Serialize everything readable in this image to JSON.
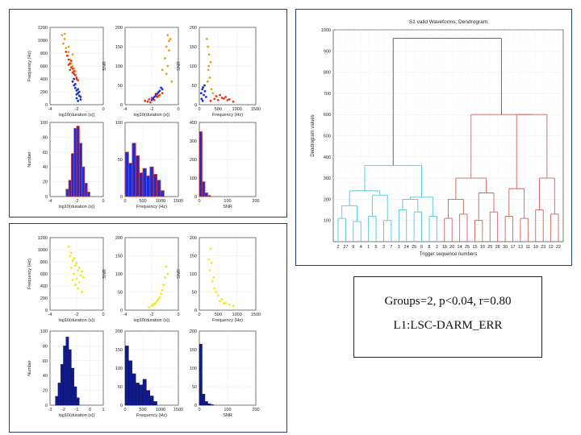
{
  "colors": {
    "red": "#e03a1e",
    "blue": "#1f2bd6",
    "orange": "#e8a020",
    "yellow": "#f2e81a",
    "navy": "#101a8a",
    "cyan": "#4fc3dc",
    "dendro_red": "#d0605a",
    "dendro_gray": "#555555",
    "grid": "#d8d8d8",
    "frame": "#1f3f7a"
  },
  "info": {
    "line1": "Groups=2, p<0.04, r=0.80",
    "line2": "L1:LSC-DARM_ERR"
  },
  "chart_data": [
    {
      "id": "top-freq-vs-duration",
      "type": "scatter",
      "xlabel": "log10(duration (s))",
      "ylabel": "Frequency (Hz)",
      "xlim": [
        -4,
        0
      ],
      "ylim": [
        0,
        1200
      ],
      "xticks": [
        "-4",
        "-2",
        "0"
      ],
      "yticks": [
        "0",
        "200",
        "400",
        "600",
        "800",
        "1000",
        "1200"
      ],
      "grid": true,
      "series": [
        {
          "color": "orange",
          "x": [
            -3.1,
            -3.0,
            -2.9,
            -2.8,
            -2.7,
            -2.6,
            -2.5,
            -2.4,
            -2.3,
            -2.2,
            -2.1,
            -2.9,
            -2.6,
            -2.3
          ],
          "y": [
            1080,
            950,
            1020,
            880,
            760,
            900,
            700,
            640,
            780,
            560,
            520,
            1100,
            820,
            600
          ]
        },
        {
          "color": "red",
          "x": [
            -2.8,
            -2.7,
            -2.6,
            -2.5,
            -2.4,
            -2.3,
            -2.2,
            -2.1,
            -2.0,
            -1.9,
            -2.6,
            -2.4,
            -2.2,
            -2.0,
            -2.5,
            -2.3
          ],
          "y": [
            820,
            760,
            700,
            640,
            680,
            560,
            520,
            460,
            400,
            380,
            620,
            580,
            480,
            420,
            540,
            500
          ]
        },
        {
          "color": "blue",
          "x": [
            -2.3,
            -2.2,
            -2.1,
            -2.0,
            -1.9,
            -1.8,
            -1.7,
            -2.1,
            -1.9,
            -2.0,
            -1.8,
            -2.2,
            -1.9,
            -1.7,
            -2.0
          ],
          "y": [
            360,
            300,
            260,
            220,
            180,
            140,
            120,
            320,
            240,
            100,
            200,
            400,
            60,
            80,
            160
          ]
        }
      ]
    },
    {
      "id": "top-snr-vs-duration",
      "type": "scatter",
      "xlabel": "log10(duration (s))",
      "ylabel": "SNR",
      "xlim": [
        -4,
        0
      ],
      "ylim": [
        0,
        200
      ],
      "xticks": [
        "-4",
        "-2",
        "0"
      ],
      "yticks": [
        "0",
        "50",
        "100",
        "150",
        "200"
      ],
      "grid": true,
      "series": [
        {
          "color": "orange",
          "x": [
            -0.8,
            -0.7,
            -0.9,
            -0.6,
            -1.0,
            -0.7,
            -0.8,
            -1.2,
            -0.5,
            -0.9
          ],
          "y": [
            180,
            165,
            150,
            170,
            120,
            140,
            100,
            90,
            60,
            80
          ]
        },
        {
          "color": "red",
          "x": [
            -2.5,
            -2.2,
            -2.0,
            -1.8,
            -1.6,
            -1.4,
            -1.2,
            -2.3,
            -1.9,
            -1.5,
            -2.1,
            -1.7
          ],
          "y": [
            10,
            14,
            18,
            12,
            20,
            25,
            30,
            8,
            16,
            22,
            6,
            28
          ]
        },
        {
          "color": "blue",
          "x": [
            -2.0,
            -1.8,
            -1.6,
            -1.4,
            -1.2,
            -1.7,
            -1.5,
            -1.3,
            -1.9
          ],
          "y": [
            12,
            20,
            28,
            36,
            40,
            24,
            32,
            44,
            16
          ]
        }
      ]
    },
    {
      "id": "top-snr-vs-frequency",
      "type": "scatter",
      "xlabel": "Frequency (Hz)",
      "ylabel": "SNR",
      "xlim": [
        0,
        1500
      ],
      "ylim": [
        0,
        200
      ],
      "xticks": [
        "0",
        "500",
        "1000",
        "1500"
      ],
      "yticks": [
        "0",
        "50",
        "100",
        "150",
        "200"
      ],
      "grid": true,
      "series": [
        {
          "color": "orange",
          "x": [
            200,
            230,
            260,
            300,
            240,
            280,
            220,
            320,
            360,
            250
          ],
          "y": [
            170,
            150,
            130,
            110,
            90,
            70,
            60,
            40,
            30,
            100
          ]
        },
        {
          "color": "red",
          "x": [
            300,
            400,
            500,
            600,
            700,
            800,
            900,
            450,
            650,
            550,
            750
          ],
          "y": [
            10,
            15,
            12,
            18,
            20,
            14,
            8,
            22,
            16,
            25,
            12
          ]
        },
        {
          "color": "blue",
          "x": [
            50,
            80,
            120,
            150,
            100,
            180,
            60,
            140,
            90
          ],
          "y": [
            30,
            40,
            25,
            35,
            45,
            20,
            15,
            50,
            10
          ]
        }
      ]
    },
    {
      "id": "top-duration-hist",
      "type": "bar",
      "xlabel": "log10(duration (s))",
      "ylabel": "Number",
      "xlim": [
        -4,
        0
      ],
      "ylim": [
        0,
        100
      ],
      "xticks": [
        "-4",
        "-2",
        "0"
      ],
      "yticks": [
        "0",
        "20",
        "40",
        "60",
        "80",
        "100"
      ],
      "grid": true,
      "bin_edges": [
        -2.8,
        -2.6,
        -2.4,
        -2.2,
        -2.0,
        -1.8,
        -1.6,
        -1.4,
        -1.2,
        -1.0
      ],
      "values": [
        10,
        22,
        58,
        92,
        95,
        72,
        40,
        18,
        6
      ]
    },
    {
      "id": "top-frequency-hist",
      "type": "bar",
      "xlabel": "Frequency (Hz)",
      "ylabel": "",
      "xlim": [
        0,
        1500
      ],
      "ylim": [
        0,
        100
      ],
      "xticks": [
        "0",
        "500",
        "1000",
        "1500"
      ],
      "yticks": [
        "0",
        "50",
        "100"
      ],
      "grid": true,
      "bin_edges": [
        0,
        100,
        200,
        300,
        400,
        500,
        600,
        700,
        800,
        900,
        1000,
        1100
      ],
      "values": [
        60,
        45,
        72,
        55,
        32,
        38,
        28,
        40,
        30,
        22,
        8
      ]
    },
    {
      "id": "top-snr-hist",
      "type": "bar",
      "xlabel": "SNR",
      "ylabel": "",
      "xlim": [
        0,
        200
      ],
      "ylim": [
        0,
        400
      ],
      "xticks": [
        "0",
        "100",
        "200"
      ],
      "yticks": [
        "0",
        "100",
        "200",
        "300",
        "400"
      ],
      "grid": true,
      "bin_edges": [
        0,
        10,
        20,
        30,
        40
      ],
      "values": [
        350,
        80,
        20,
        6
      ]
    },
    {
      "id": "bottom-freq-vs-duration",
      "type": "scatter",
      "xlabel": "log10(duration (s))",
      "ylabel": "Frequency (Hz)",
      "xlim": [
        -4,
        0
      ],
      "ylim": [
        0,
        1200
      ],
      "xticks": [
        "-4",
        "-2",
        "0"
      ],
      "yticks": [
        "0",
        "200",
        "400",
        "600",
        "800",
        "1000",
        "1200"
      ],
      "grid": true,
      "series": [
        {
          "color": "yellow",
          "x": [
            -2.6,
            -2.4,
            -2.2,
            -2.0,
            -1.8,
            -1.6,
            -2.5,
            -2.3,
            -2.1,
            -1.9,
            -1.7,
            -2.2,
            -2.0,
            -1.8,
            -2.4,
            -1.5,
            -2.1,
            -1.9,
            -2.3,
            -1.6
          ],
          "y": [
            1050,
            950,
            860,
            780,
            700,
            640,
            900,
            820,
            740,
            660,
            580,
            600,
            520,
            460,
            700,
            540,
            420,
            360,
            500,
            300
          ]
        }
      ]
    },
    {
      "id": "bottom-snr-vs-duration",
      "type": "scatter",
      "xlabel": "log10(duration (s))",
      "ylabel": "SNR",
      "xlim": [
        -4,
        0
      ],
      "ylim": [
        0,
        200
      ],
      "xticks": [
        "-4",
        "-2",
        "0"
      ],
      "yticks": [
        "0",
        "50",
        "100",
        "150",
        "200"
      ],
      "grid": true,
      "series": [
        {
          "color": "yellow",
          "x": [
            -0.9,
            -0.8,
            -1.0,
            -1.1,
            -1.2,
            -1.3,
            -1.4,
            -1.6,
            -1.8,
            -2.0,
            -2.2,
            -1.5,
            -1.7,
            -1.9
          ],
          "y": [
            120,
            100,
            90,
            70,
            55,
            45,
            35,
            25,
            18,
            12,
            8,
            30,
            20,
            15
          ]
        }
      ]
    },
    {
      "id": "bottom-snr-vs-frequency",
      "type": "scatter",
      "xlabel": "Frequency (Hz)",
      "ylabel": "SNR",
      "xlim": [
        0,
        1500
      ],
      "ylim": [
        0,
        200
      ],
      "xticks": [
        "0",
        "500",
        "1000",
        "1500"
      ],
      "yticks": [
        "0",
        "50",
        "100",
        "150",
        "200"
      ],
      "grid": true,
      "series": [
        {
          "color": "yellow",
          "x": [
            300,
            320,
            280,
            350,
            400,
            500,
            600,
            700,
            800,
            900,
            380,
            450,
            550,
            650,
            250
          ],
          "y": [
            170,
            130,
            110,
            80,
            60,
            40,
            30,
            20,
            15,
            12,
            90,
            50,
            25,
            18,
            140
          ]
        }
      ]
    },
    {
      "id": "bottom-duration-hist",
      "type": "bar",
      "xlabel": "log10(duration (s))",
      "ylabel": "Number",
      "xlim": [
        -3,
        1
      ],
      "ylim": [
        0,
        100
      ],
      "xticks": [
        "-3",
        "-2",
        "-1",
        "0",
        "1"
      ],
      "yticks": [
        "0",
        "20",
        "40",
        "60",
        "80",
        "100"
      ],
      "grid": true,
      "bin_edges": [
        -2.6,
        -2.4,
        -2.2,
        -2.0,
        -1.8,
        -1.6,
        -1.4,
        -1.2,
        -1.0,
        -0.8
      ],
      "values": [
        12,
        30,
        55,
        80,
        92,
        75,
        50,
        25,
        10
      ]
    },
    {
      "id": "bottom-frequency-hist",
      "type": "bar",
      "xlabel": "Frequency (Hz)",
      "ylabel": "",
      "xlim": [
        0,
        1500
      ],
      "ylim": [
        0,
        200
      ],
      "xticks": [
        "0",
        "500",
        "1000",
        "1500"
      ],
      "yticks": [
        "0",
        "50",
        "100",
        "150",
        "200"
      ],
      "grid": true,
      "bin_edges": [
        0,
        100,
        200,
        300,
        400,
        500,
        600,
        700,
        800,
        900
      ],
      "values": [
        160,
        120,
        85,
        60,
        55,
        70,
        40,
        25,
        10
      ]
    },
    {
      "id": "bottom-snr-hist",
      "type": "bar",
      "xlabel": "SNR",
      "ylabel": "",
      "xlim": [
        0,
        200
      ],
      "ylim": [
        0,
        200
      ],
      "xticks": [
        "0",
        "100",
        "200"
      ],
      "yticks": [
        "0",
        "50",
        "100",
        "150",
        "200"
      ],
      "grid": true,
      "bin_edges": [
        0,
        10,
        20,
        30,
        40,
        50
      ],
      "values": [
        165,
        30,
        10,
        4,
        2
      ]
    },
    {
      "id": "dendrogram",
      "type": "dendrogram",
      "title": "S1 valid Waveforms; Dendrogram",
      "xlabel": "Trigger sequence numbers",
      "ylabel": "Dendrogram values",
      "ylim": [
        0,
        1000
      ],
      "yticks": [
        "100",
        "200",
        "300",
        "400",
        "500",
        "600",
        "700",
        "800",
        "900",
        "1000"
      ],
      "leaves": [
        "2",
        "27",
        "9",
        "4",
        "1",
        "5",
        "3",
        "7",
        "3",
        "24",
        "25",
        "6",
        "8",
        "2",
        "18",
        "20",
        "14",
        "25",
        "15",
        "10",
        "25",
        "28",
        "30",
        "17",
        "13",
        "11",
        "10",
        "23",
        "12",
        "22"
      ],
      "groups": [
        {
          "color": "cyan",
          "leaf_range": [
            0,
            14
          ],
          "merge_height": 360
        },
        {
          "color": "dendro_red",
          "leaf_range": [
            14,
            30
          ],
          "merge_height": 600
        }
      ],
      "root_height": 960,
      "links": [
        {
          "a": [
            0,
            1
          ],
          "h": 110,
          "color": "cyan"
        },
        {
          "a": [
            2,
            3
          ],
          "h": 95,
          "color": "cyan"
        },
        {
          "a": [
            4,
            5
          ],
          "h": 120,
          "color": "cyan"
        },
        {
          "a": [
            6,
            7
          ],
          "h": 100,
          "color": "cyan"
        },
        {
          "a": [
            8,
            9
          ],
          "h": 150,
          "color": "cyan"
        },
        {
          "a": [
            10,
            11
          ],
          "h": 140,
          "color": "cyan"
        },
        {
          "a": [
            12,
            13
          ],
          "h": 120,
          "color": "cyan"
        },
        {
          "a": [
            0.5,
            2.5
          ],
          "h": 170,
          "color": "cyan"
        },
        {
          "a": [
            4.5,
            6.5
          ],
          "h": 220,
          "color": "cyan"
        },
        {
          "a": [
            1.5,
            5.5
          ],
          "h": 240,
          "color": "cyan"
        },
        {
          "a": [
            8.5,
            10.5
          ],
          "h": 200,
          "color": "cyan"
        },
        {
          "a": [
            9.5,
            12.5
          ],
          "h": 210,
          "color": "cyan"
        },
        {
          "a": [
            3.5,
            11
          ],
          "h": 360,
          "color": "cyan"
        },
        {
          "a": [
            14,
            15
          ],
          "h": 110,
          "color": "dendro_red"
        },
        {
          "a": [
            16,
            17
          ],
          "h": 130,
          "color": "dendro_red"
        },
        {
          "a": [
            18,
            19
          ],
          "h": 100,
          "color": "dendro_red"
        },
        {
          "a": [
            20,
            21
          ],
          "h": 140,
          "color": "dendro_red"
        },
        {
          "a": [
            22,
            23
          ],
          "h": 120,
          "color": "dendro_red"
        },
        {
          "a": [
            24,
            25
          ],
          "h": 110,
          "color": "dendro_red"
        },
        {
          "a": [
            26,
            27
          ],
          "h": 150,
          "color": "dendro_red"
        },
        {
          "a": [
            28,
            29
          ],
          "h": 130,
          "color": "dendro_red"
        },
        {
          "a": [
            14.5,
            16.5
          ],
          "h": 200,
          "color": "dendro_red"
        },
        {
          "a": [
            18.5,
            20.5
          ],
          "h": 230,
          "color": "dendro_red"
        },
        {
          "a": [
            22.5,
            24.5
          ],
          "h": 250,
          "color": "dendro_red"
        },
        {
          "a": [
            26.5,
            28.5
          ],
          "h": 300,
          "color": "dendro_red"
        },
        {
          "a": [
            15.5,
            19.5
          ],
          "h": 300,
          "color": "dendro_red"
        },
        {
          "a": [
            23.5,
            27.5
          ],
          "h": 600,
          "color": "dendro_red"
        },
        {
          "a": [
            17.5,
            25.5
          ],
          "h": 600,
          "color": "dendro_red"
        },
        {
          "a": [
            7.25,
            21.5
          ],
          "h": 960,
          "color": "dendro_gray"
        }
      ]
    }
  ]
}
